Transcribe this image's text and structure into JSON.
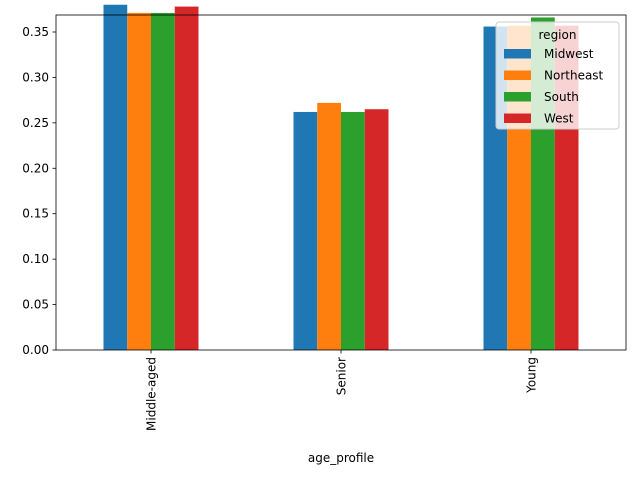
{
  "chart_data": {
    "type": "bar",
    "categories": [
      "Middle-aged",
      "Senior",
      "Young"
    ],
    "xlabel": "age_profile",
    "ylabel": "",
    "ylim": [
      0,
      0.4
    ],
    "yticks": [
      "0.00",
      "0.05",
      "0.10",
      "0.15",
      "0.20",
      "0.25",
      "0.30",
      "0.35"
    ],
    "legend": {
      "title": "region",
      "placement": "top-right"
    },
    "grid": false,
    "series": [
      {
        "name": "Midwest",
        "color": "#1f77b4",
        "values": [
          0.38,
          0.262,
          0.356
        ]
      },
      {
        "name": "Northeast",
        "color": "#ff7f0e",
        "values": [
          0.371,
          0.272,
          0.357
        ]
      },
      {
        "name": "South",
        "color": "#2ca02c",
        "values": [
          0.371,
          0.262,
          0.366
        ]
      },
      {
        "name": "West",
        "color": "#d62728",
        "values": [
          0.378,
          0.265,
          0.357
        ]
      }
    ]
  }
}
